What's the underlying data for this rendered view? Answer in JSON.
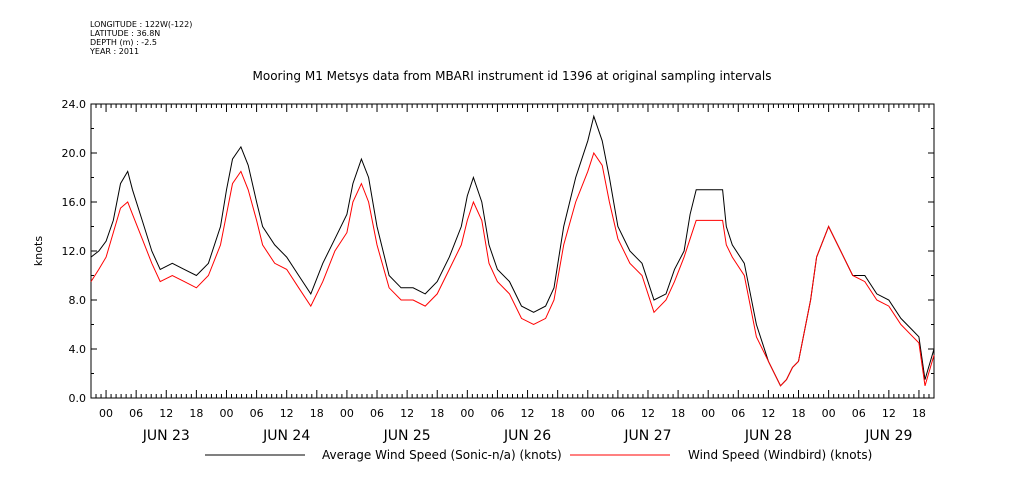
{
  "meta": {
    "longitude": "LONGITUDE : 122W(-122)",
    "latitude": "LATITUDE : 36.8N",
    "depth": "DEPTH (m) : -2.5",
    "year": "YEAR : 2011"
  },
  "chart_data": {
    "type": "line",
    "title": "Mooring M1 Metsys data from MBARI instrument id 1396 at original sampling intervals",
    "ylabel": "knots",
    "xlabel": "",
    "ylim": [
      0,
      24
    ],
    "xlim": [
      -0.125,
      6.875
    ],
    "y_ticks": [
      "0.0",
      "4.0",
      "8.0",
      "12.0",
      "16.0",
      "20.0",
      "24.0"
    ],
    "hour_ticks": [
      "00",
      "06",
      "12",
      "18",
      "00",
      "06",
      "12",
      "18",
      "00",
      "06",
      "12",
      "18",
      "00",
      "06",
      "12",
      "18",
      "00",
      "06",
      "12",
      "18",
      "00",
      "06",
      "12",
      "18",
      "00",
      "06",
      "12",
      "18"
    ],
    "day_labels": [
      "JUN 23",
      "JUN 24",
      "JUN 25",
      "JUN 26",
      "JUN 27",
      "JUN 28",
      "JUN 29"
    ],
    "x_unit_note": "x values are days since JUN 23 00:00 (decimal)",
    "grid": false,
    "legend": "bottom",
    "series": [
      {
        "name": "Average Wind Speed (Sonic-n/a) (knots)",
        "color": "#000000",
        "x": [
          -0.125,
          -0.06,
          0.0,
          0.06,
          0.12,
          0.18,
          0.22,
          0.3,
          0.38,
          0.45,
          0.55,
          0.65,
          0.75,
          0.85,
          0.95,
          1.0,
          1.05,
          1.12,
          1.18,
          1.25,
          1.3,
          1.4,
          1.5,
          1.6,
          1.7,
          1.8,
          1.9,
          2.0,
          2.05,
          2.12,
          2.18,
          2.25,
          2.35,
          2.45,
          2.55,
          2.65,
          2.75,
          2.85,
          2.95,
          3.0,
          3.05,
          3.12,
          3.18,
          3.25,
          3.35,
          3.45,
          3.55,
          3.65,
          3.72,
          3.8,
          3.9,
          4.0,
          4.05,
          4.12,
          4.18,
          4.25,
          4.35,
          4.45,
          4.55,
          4.65,
          4.72,
          4.8,
          4.85,
          4.9,
          5.12,
          5.15,
          5.2,
          5.3,
          5.4,
          5.5,
          5.6,
          5.65,
          5.7,
          5.75,
          5.85,
          5.9,
          6.0,
          6.1,
          6.2,
          6.3,
          6.4,
          6.5,
          6.6,
          6.7,
          6.75,
          6.8,
          6.875
        ],
        "y": [
          11.5,
          12.0,
          12.8,
          14.5,
          17.5,
          18.5,
          17.0,
          14.5,
          12.0,
          10.5,
          11.0,
          10.5,
          10.0,
          11.0,
          14.0,
          17.0,
          19.5,
          20.5,
          19.0,
          16.0,
          14.0,
          12.5,
          11.5,
          10.0,
          8.5,
          11.0,
          13.0,
          15.0,
          17.5,
          19.5,
          18.0,
          14.0,
          10.0,
          9.0,
          9.0,
          8.5,
          9.5,
          11.5,
          14.0,
          16.5,
          18.0,
          16.0,
          12.5,
          10.5,
          9.5,
          7.5,
          7.0,
          7.5,
          9.0,
          14.0,
          18.0,
          21.0,
          23.0,
          21.0,
          18.0,
          14.0,
          12.0,
          11.0,
          8.0,
          8.5,
          10.5,
          12.0,
          15.0,
          17.0,
          17.0,
          14.0,
          12.5,
          11.0,
          6.0,
          3.0,
          1.0,
          1.5,
          2.5,
          3.0,
          8.0,
          11.5,
          14.0,
          12.0,
          10.0,
          10.0,
          8.5,
          8.0,
          6.5,
          5.5,
          5.0,
          1.5,
          4.0
        ]
      },
      {
        "name": "Wind Speed (Windbird) (knots)",
        "color": "#ff0000",
        "x": [
          -0.125,
          -0.06,
          0.0,
          0.06,
          0.12,
          0.18,
          0.22,
          0.3,
          0.38,
          0.45,
          0.55,
          0.65,
          0.75,
          0.85,
          0.95,
          1.0,
          1.05,
          1.12,
          1.18,
          1.25,
          1.3,
          1.4,
          1.5,
          1.6,
          1.7,
          1.8,
          1.9,
          2.0,
          2.05,
          2.12,
          2.18,
          2.25,
          2.35,
          2.45,
          2.55,
          2.65,
          2.75,
          2.85,
          2.95,
          3.0,
          3.05,
          3.12,
          3.18,
          3.25,
          3.35,
          3.45,
          3.55,
          3.65,
          3.72,
          3.8,
          3.9,
          4.0,
          4.05,
          4.12,
          4.18,
          4.25,
          4.35,
          4.45,
          4.55,
          4.65,
          4.72,
          4.8,
          4.85,
          4.9,
          5.12,
          5.15,
          5.2,
          5.3,
          5.4,
          5.5,
          5.6,
          5.65,
          5.7,
          5.75,
          5.85,
          5.9,
          6.0,
          6.1,
          6.2,
          6.3,
          6.4,
          6.5,
          6.6,
          6.7,
          6.75,
          6.8,
          6.875
        ],
        "y": [
          9.5,
          10.5,
          11.5,
          13.5,
          15.5,
          16.0,
          15.0,
          13.0,
          11.0,
          9.5,
          10.0,
          9.5,
          9.0,
          10.0,
          12.5,
          15.0,
          17.5,
          18.5,
          17.0,
          14.5,
          12.5,
          11.0,
          10.5,
          9.0,
          7.5,
          9.5,
          12.0,
          13.5,
          16.0,
          17.5,
          16.0,
          12.5,
          9.0,
          8.0,
          8.0,
          7.5,
          8.5,
          10.5,
          12.5,
          14.5,
          16.0,
          14.5,
          11.0,
          9.5,
          8.5,
          6.5,
          6.0,
          6.5,
          8.0,
          12.5,
          16.0,
          18.5,
          20.0,
          19.0,
          16.0,
          13.0,
          11.0,
          10.0,
          7.0,
          8.0,
          9.5,
          11.5,
          13.0,
          14.5,
          14.5,
          12.5,
          11.5,
          10.0,
          5.0,
          3.0,
          1.0,
          1.5,
          2.5,
          3.0,
          8.0,
          11.5,
          14.0,
          12.0,
          10.0,
          9.5,
          8.0,
          7.5,
          6.0,
          5.0,
          4.5,
          1.0,
          3.5
        ]
      }
    ]
  }
}
